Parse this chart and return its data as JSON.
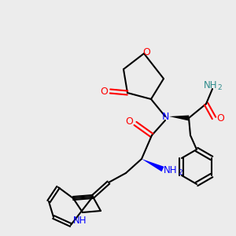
{
  "bg_color": "#ececec",
  "atom_colors": {
    "O": "#ff0000",
    "N": "#0000ff",
    "C": "#000000",
    "H_amide": "#2e8b8b",
    "NH_indole": "#0000ff"
  }
}
